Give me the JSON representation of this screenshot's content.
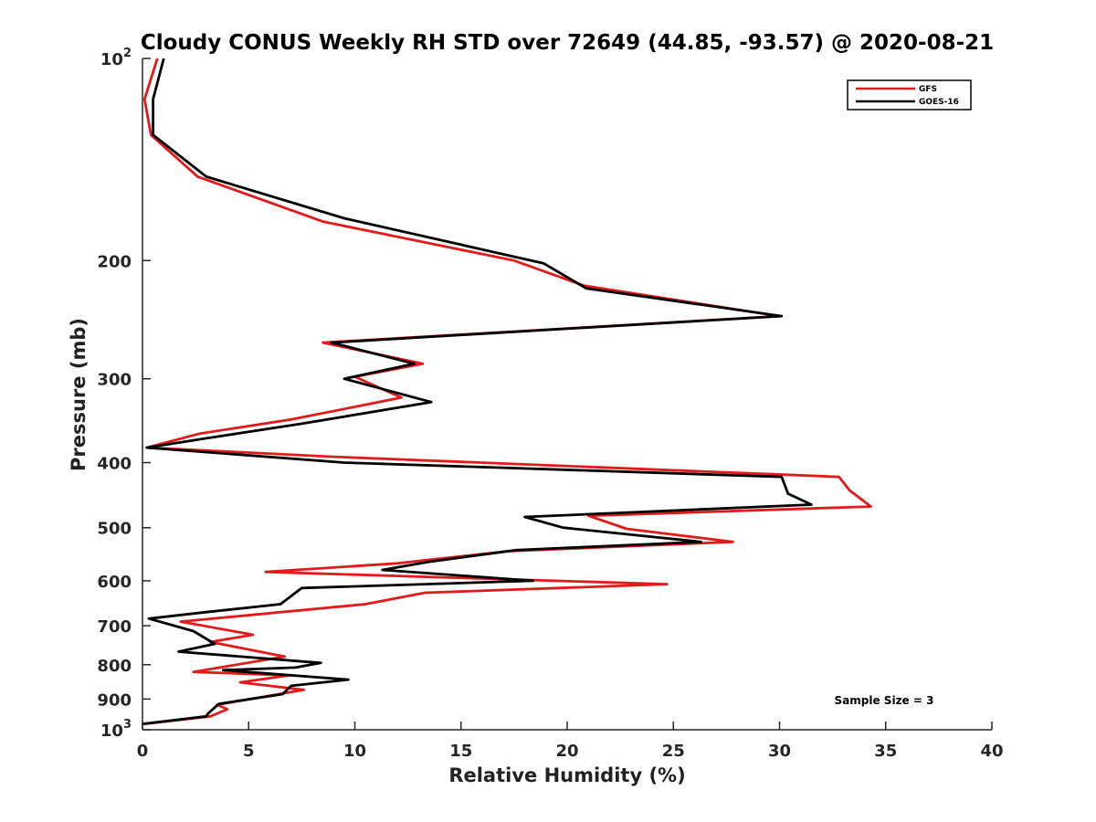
{
  "chart_data": {
    "type": "line",
    "title": "Cloudy CONUS Weekly RH STD over 72649 (44.85, -93.57) @ 2020-08-21",
    "xlabel": "Relative Humidity (%)",
    "ylabel": "Pressure (mb)",
    "xlim": [
      0,
      40
    ],
    "ylim": [
      100,
      1000
    ],
    "y_scale": "log",
    "y_reversed": true,
    "x_ticks": [
      0,
      5,
      10,
      15,
      20,
      25,
      30,
      35,
      40
    ],
    "y_ticks": [
      {
        "value": 100,
        "base": "10",
        "exp": "2"
      },
      {
        "value": 200,
        "label": "200"
      },
      {
        "value": 300,
        "label": "300"
      },
      {
        "value": 400,
        "label": "400"
      },
      {
        "value": 500,
        "label": "500"
      },
      {
        "value": 600,
        "label": "600"
      },
      {
        "value": 700,
        "label": "700"
      },
      {
        "value": 800,
        "label": "800"
      },
      {
        "value": 900,
        "label": "900"
      },
      {
        "value": 1000,
        "base": "10",
        "exp": "3"
      }
    ],
    "grid": false,
    "legend_position": "top-right",
    "series": [
      {
        "name": "GFS",
        "color": "#e31a1c",
        "points": [
          [
            0.7,
            100
          ],
          [
            0.1,
            115
          ],
          [
            0.4,
            130
          ],
          [
            2.6,
            150
          ],
          [
            8.5,
            175
          ],
          [
            17.5,
            200
          ],
          [
            20.8,
            218
          ],
          [
            30.0,
            242
          ],
          [
            8.5,
            265
          ],
          [
            13.2,
            285
          ],
          [
            10.0,
            298
          ],
          [
            12.2,
            320
          ],
          [
            7.0,
            345
          ],
          [
            2.7,
            362
          ],
          [
            0.2,
            380
          ],
          [
            9.0,
            392
          ],
          [
            32.8,
            420
          ],
          [
            33.3,
            440
          ],
          [
            34.3,
            465
          ],
          [
            21.0,
            480
          ],
          [
            22.8,
            502
          ],
          [
            27.8,
            525
          ],
          [
            17.2,
            542
          ],
          [
            12.0,
            565
          ],
          [
            5.8,
            582
          ],
          [
            24.7,
            607
          ],
          [
            13.3,
            625
          ],
          [
            10.5,
            650
          ],
          [
            1.8,
            690
          ],
          [
            5.2,
            722
          ],
          [
            3.2,
            740
          ],
          [
            6.7,
            778
          ],
          [
            2.4,
            820
          ],
          [
            6.9,
            830
          ],
          [
            4.6,
            850
          ],
          [
            7.6,
            872
          ],
          [
            3.5,
            918
          ],
          [
            4.0,
            932
          ],
          [
            3.2,
            955
          ],
          [
            0.1,
            980
          ]
        ]
      },
      {
        "name": "GOES-16",
        "color": "#000000",
        "points": [
          [
            1.0,
            100
          ],
          [
            0.5,
            115
          ],
          [
            0.5,
            130
          ],
          [
            3.0,
            150
          ],
          [
            9.5,
            173
          ],
          [
            18.9,
            202
          ],
          [
            20.9,
            220
          ],
          [
            30.1,
            242
          ],
          [
            8.9,
            265
          ],
          [
            12.8,
            285
          ],
          [
            9.5,
            300
          ],
          [
            13.6,
            325
          ],
          [
            7.5,
            350
          ],
          [
            3.0,
            368
          ],
          [
            0.2,
            380
          ],
          [
            9.5,
            400
          ],
          [
            30.1,
            420
          ],
          [
            30.4,
            445
          ],
          [
            31.5,
            462
          ],
          [
            18.0,
            482
          ],
          [
            19.8,
            500
          ],
          [
            26.3,
            525
          ],
          [
            17.6,
            540
          ],
          [
            13.5,
            562
          ],
          [
            11.3,
            578
          ],
          [
            18.4,
            600
          ],
          [
            7.5,
            615
          ],
          [
            6.5,
            650
          ],
          [
            3.0,
            668
          ],
          [
            0.3,
            683
          ],
          [
            2.4,
            713
          ],
          [
            3.4,
            745
          ],
          [
            1.7,
            765
          ],
          [
            8.4,
            795
          ],
          [
            7.2,
            808
          ],
          [
            3.8,
            815
          ],
          [
            9.7,
            842
          ],
          [
            7.0,
            860
          ],
          [
            6.6,
            885
          ],
          [
            3.6,
            915
          ],
          [
            3.1,
            945
          ],
          [
            3.0,
            955
          ],
          [
            0.0,
            980
          ]
        ]
      }
    ],
    "annotation": "Sample Size = 3"
  }
}
